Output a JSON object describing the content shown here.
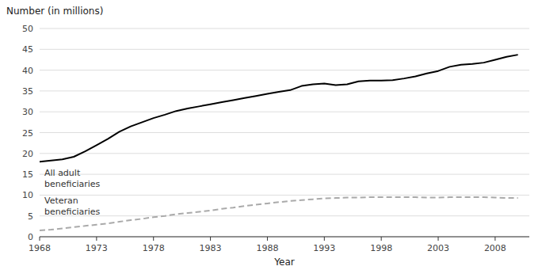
{
  "chart_data": {
    "type": "line",
    "xlabel": "Year",
    "ylabel": "Number (in millions)",
    "x": [
      1968,
      1969,
      1970,
      1971,
      1972,
      1973,
      1974,
      1975,
      1976,
      1977,
      1978,
      1979,
      1980,
      1981,
      1982,
      1983,
      1984,
      1985,
      1986,
      1987,
      1988,
      1989,
      1990,
      1991,
      1992,
      1993,
      1994,
      1995,
      1996,
      1997,
      1998,
      1999,
      2000,
      2001,
      2002,
      2003,
      2004,
      2005,
      2006,
      2007,
      2008,
      2009,
      2010
    ],
    "series": [
      {
        "name": "All adult\nbeneficiaries",
        "color": "#000000",
        "line_style": "solid",
        "values": [
          18.0,
          18.3,
          18.6,
          19.2,
          20.5,
          22.0,
          23.5,
          25.2,
          26.5,
          27.5,
          28.5,
          29.3,
          30.2,
          30.8,
          31.3,
          31.8,
          32.3,
          32.8,
          33.3,
          33.8,
          34.3,
          34.8,
          35.2,
          36.2,
          36.6,
          36.8,
          36.4,
          36.6,
          37.3,
          37.5,
          37.5,
          37.6,
          38.0,
          38.5,
          39.2,
          39.8,
          40.8,
          41.3,
          41.5,
          41.8,
          42.5,
          43.2,
          43.7
        ]
      },
      {
        "name": "Veteran\nbeneficiaries",
        "color": "#aaaaaa",
        "line_style": "dashed",
        "values": [
          1.5,
          1.7,
          2.0,
          2.3,
          2.6,
          2.9,
          3.2,
          3.6,
          4.0,
          4.3,
          4.7,
          5.0,
          5.4,
          5.7,
          6.0,
          6.3,
          6.7,
          7.0,
          7.4,
          7.7,
          8.0,
          8.3,
          8.6,
          8.8,
          9.0,
          9.2,
          9.3,
          9.4,
          9.4,
          9.5,
          9.5,
          9.5,
          9.5,
          9.5,
          9.4,
          9.4,
          9.5,
          9.5,
          9.5,
          9.5,
          9.4,
          9.3,
          9.3
        ]
      }
    ],
    "xlim": [
      1968,
      2011
    ],
    "ylim": [
      0,
      50
    ],
    "xticks": [
      1968,
      1973,
      1978,
      1983,
      1988,
      1993,
      1998,
      2003,
      2008
    ],
    "yticks": [
      0,
      5,
      10,
      15,
      20,
      25,
      30,
      35,
      40,
      45,
      50
    ],
    "grid": true
  }
}
